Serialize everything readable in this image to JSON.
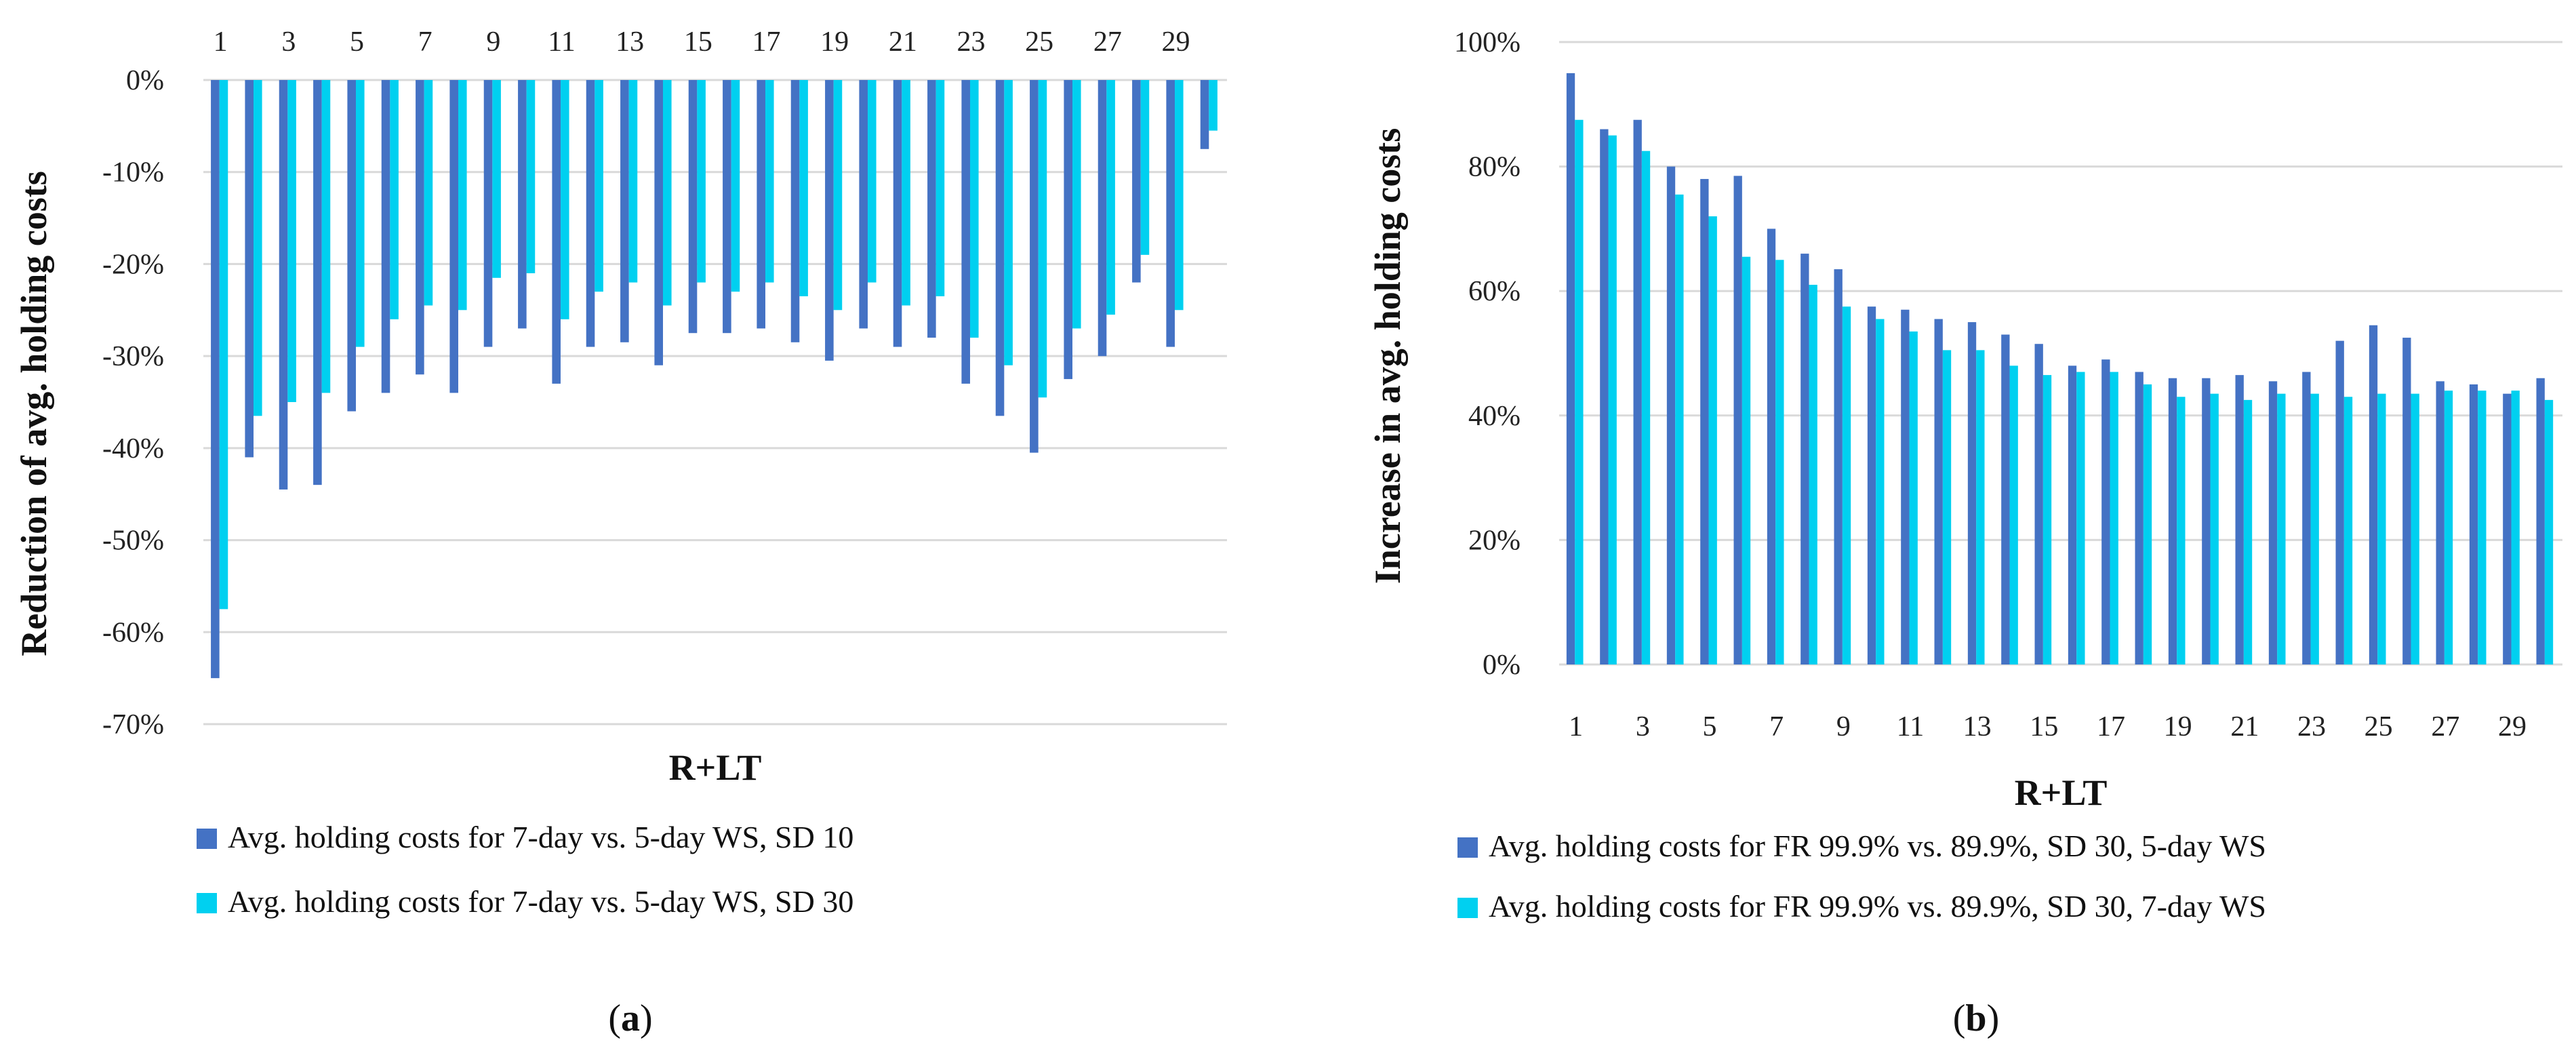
{
  "colors": {
    "series1": "#4472C4",
    "series2": "#00D0F0",
    "grid": "#D9D9D9"
  },
  "chart_data": [
    {
      "type": "bar",
      "panel_label": "a",
      "title": "",
      "xlabel": "R+LT",
      "ylabel": "Reduction of avg. holding costs",
      "ylim": [
        -70,
        0
      ],
      "yticks": [
        "0%",
        "-10%",
        "-20%",
        "-30%",
        "-40%",
        "-50%",
        "-60%",
        "-70%"
      ],
      "x_axis_position": "top",
      "categories": [
        "1",
        "2",
        "3",
        "4",
        "5",
        "6",
        "7",
        "8",
        "9",
        "10",
        "11",
        "12",
        "13",
        "14",
        "15",
        "16",
        "17",
        "18",
        "19",
        "20",
        "21",
        "22",
        "23",
        "24",
        "25",
        "26",
        "27",
        "28",
        "29",
        "30"
      ],
      "x_tick_labels": [
        "1",
        "",
        "3",
        "",
        "5",
        "",
        "7",
        "",
        "9",
        "",
        "11",
        "",
        "13",
        "",
        "15",
        "",
        "17",
        "",
        "19",
        "",
        "21",
        "",
        "23",
        "",
        "25",
        "",
        "27",
        "",
        "29",
        ""
      ],
      "series": [
        {
          "name": "Avg. holding costs for 7-day vs. 5-day WS, SD 10",
          "values": [
            -65,
            -41,
            -44.5,
            -44,
            -36,
            -34,
            -32,
            -34,
            -29,
            -27,
            -33,
            -29,
            -28.5,
            -31,
            -27.5,
            -27.5,
            -27,
            -28.5,
            -30.5,
            -27,
            -29,
            -28,
            -33,
            -36.5,
            -40.5,
            -32.5,
            -30,
            -22,
            -29,
            -7.5
          ]
        },
        {
          "name": "Avg. holding costs for 7-day vs. 5-day WS, SD 30",
          "values": [
            -57.5,
            -36.5,
            -35,
            -34,
            -29,
            -26,
            -24.5,
            -25,
            -21.5,
            -21,
            -26,
            -23,
            -22,
            -24.5,
            -22,
            -23,
            -22,
            -23.5,
            -25,
            -22,
            -24.5,
            -23.5,
            -28,
            -31,
            -34.5,
            -27,
            -25.5,
            -19,
            -25,
            -5.5
          ]
        }
      ],
      "legend": "bottom"
    },
    {
      "type": "bar",
      "panel_label": "b",
      "title": "",
      "xlabel": "R+LT",
      "ylabel": "Increase in avg. holding costs",
      "ylim": [
        0,
        100
      ],
      "yticks": [
        "0%",
        "20%",
        "40%",
        "60%",
        "80%",
        "100%"
      ],
      "x_axis_position": "bottom",
      "categories": [
        "1",
        "2",
        "3",
        "4",
        "5",
        "6",
        "7",
        "8",
        "9",
        "10",
        "11",
        "12",
        "13",
        "14",
        "15",
        "16",
        "17",
        "18",
        "19",
        "20",
        "21",
        "22",
        "23",
        "24",
        "25",
        "26",
        "27",
        "28",
        "29",
        "30"
      ],
      "x_tick_labels": [
        "1",
        "",
        "3",
        "",
        "5",
        "",
        "7",
        "",
        "9",
        "",
        "11",
        "",
        "13",
        "",
        "15",
        "",
        "17",
        "",
        "19",
        "",
        "21",
        "",
        "23",
        "",
        "25",
        "",
        "27",
        "",
        "29",
        ""
      ],
      "series": [
        {
          "name": "Avg. holding costs for FR 99.9% vs. 89.9%, SD 30, 5-day WS",
          "values": [
            95,
            86,
            87.5,
            80,
            78,
            78.5,
            70,
            66,
            63.5,
            57.5,
            57,
            55.5,
            55,
            53,
            51.5,
            48,
            49,
            47,
            46,
            46,
            46.5,
            45.5,
            47,
            52,
            54.5,
            52.5,
            45.5,
            45,
            43.5,
            46
          ]
        },
        {
          "name": "Avg. holding costs for FR 99.9% vs. 89.9%, SD 30, 7-day WS",
          "values": [
            87.5,
            85,
            82.5,
            75.5,
            72,
            65.5,
            65,
            61,
            57.5,
            55.5,
            53.5,
            50.5,
            50.5,
            48,
            46.5,
            47,
            47,
            45,
            43,
            43.5,
            42.5,
            43.5,
            43.5,
            43,
            43.5,
            43.5,
            44,
            44,
            44,
            42.5
          ]
        }
      ],
      "legend": "bottom"
    }
  ]
}
